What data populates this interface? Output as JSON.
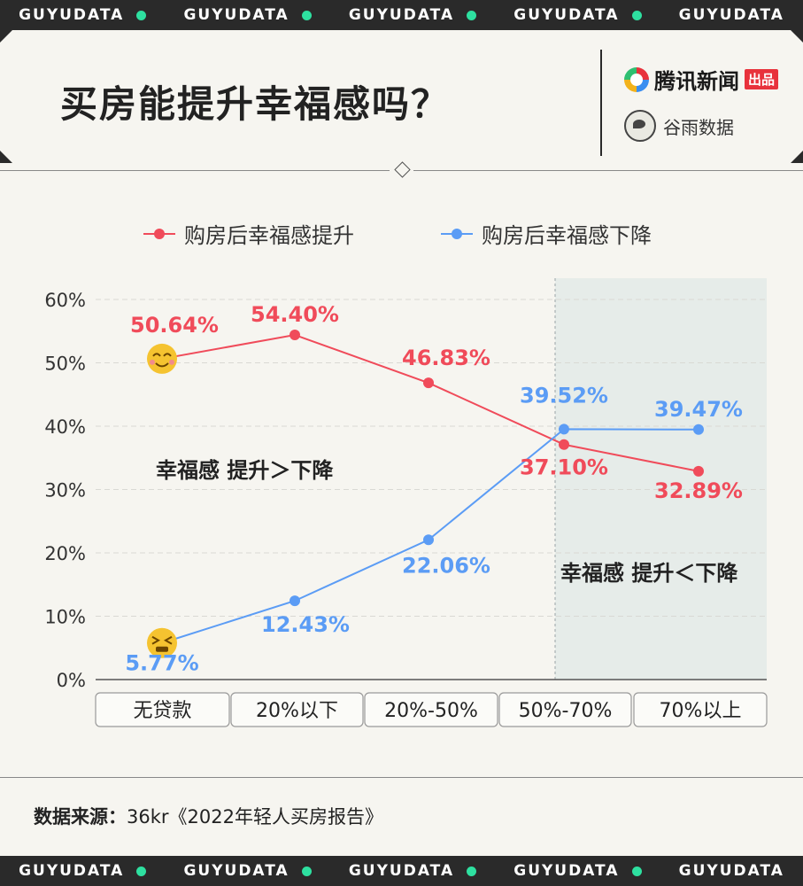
{
  "ticker": {
    "items": [
      "GUYUDATA",
      "GUYUDATA",
      "GUYUDATA",
      "GUYUDATA",
      "GUYUDATA"
    ]
  },
  "header": {
    "title": "买房能提升幸福感吗？",
    "logo_tencent": "腾讯新闻",
    "logo_tencent_badge": "出品",
    "logo_guyu": "谷雨数据"
  },
  "legend": {
    "increase": "购房后幸福感提升",
    "decrease": "购房后幸福感下降"
  },
  "annotations": {
    "left_region": "幸福感  提升＞下降",
    "right_region": "幸福感  提升＜下降"
  },
  "source": {
    "label": "数据来源：",
    "text": "36kr《2022年轻人买房报告》"
  },
  "colors": {
    "increase": "#f04b5a",
    "decrease": "#5b9cf5",
    "accent": "#2ee0a0"
  },
  "chart_data": {
    "type": "line",
    "categories": [
      "无贷款",
      "20%以下",
      "20%-50%",
      "50%-70%",
      "70%以上"
    ],
    "series": [
      {
        "name": "购房后幸福感提升",
        "values": [
          50.64,
          54.4,
          46.83,
          37.1,
          32.89
        ],
        "labels": [
          "50.64%",
          "54.40%",
          "46.83%",
          "37.10%",
          "32.89%"
        ]
      },
      {
        "name": "购房后幸福感下降",
        "values": [
          5.77,
          12.43,
          22.06,
          39.52,
          39.47
        ],
        "labels": [
          "5.77%",
          "12.43%",
          "22.06%",
          "39.52%",
          "39.47%"
        ]
      }
    ],
    "yticks": [
      "0%",
      "10%",
      "20%",
      "30%",
      "40%",
      "50%",
      "60%"
    ],
    "ylim": [
      0,
      60
    ],
    "grid": true,
    "legend": "top",
    "highlight_from_category": 3
  }
}
